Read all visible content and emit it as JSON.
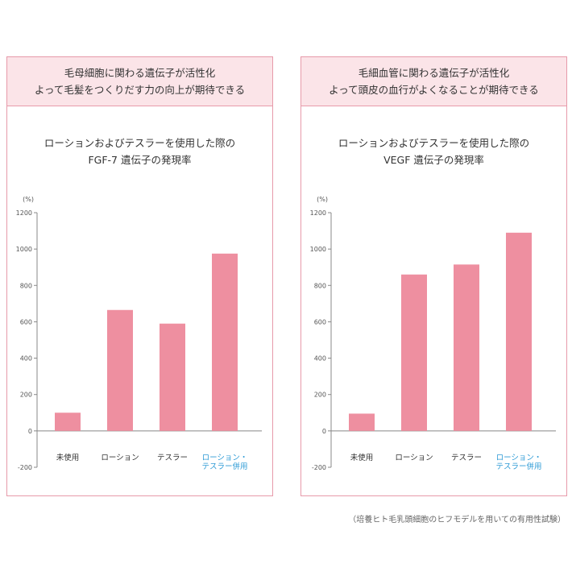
{
  "panels": [
    {
      "header_line1": "毛母細胞に関わる遺伝子が活性化",
      "header_line2": "よって毛髪をつくりだす力の向上が期待できる",
      "title_line1": "ローションおよびテスラーを使用した際の",
      "title_line2": "FGF-7 遺伝子の発現率"
    },
    {
      "header_line1": "毛細血管に関わる遺伝子が活性化",
      "header_line2": "よって頭皮の血行がよくなることが期待できる",
      "title_line1": "ローションおよびテスラーを使用した際の",
      "title_line2": "VEGF 遺伝子の発現率"
    }
  ],
  "chart_data": [
    {
      "type": "bar",
      "title": "ローションおよびテスラーを使用した際の FGF-7 遺伝子の発現率",
      "ylabel": "(%)",
      "ylim": [
        -200,
        1200
      ],
      "yticks": [
        "1200",
        "1000",
        "800",
        "600",
        "400",
        "200",
        "0",
        "-200"
      ],
      "categories": [
        {
          "line1": "未使用",
          "line2": ""
        },
        {
          "line1": "ローション",
          "line2": ""
        },
        {
          "line1": "テスラー",
          "line2": ""
        },
        {
          "line1": "ローション・",
          "line2": "テスラー併用"
        }
      ],
      "values": [
        100,
        665,
        590,
        975
      ],
      "bar_color": "#ee8fa0",
      "highlight_label_color": "#2e9bd6"
    },
    {
      "type": "bar",
      "title": "ローションおよびテスラーを使用した際の VEGF 遺伝子の発現率",
      "ylabel": "(%)",
      "ylim": [
        -200,
        1200
      ],
      "yticks": [
        "1200",
        "1000",
        "800",
        "600",
        "400",
        "200",
        "0",
        "-200"
      ],
      "categories": [
        {
          "line1": "未使用",
          "line2": ""
        },
        {
          "line1": "ローション",
          "line2": ""
        },
        {
          "line1": "テスラー",
          "line2": ""
        },
        {
          "line1": "ローション・",
          "line2": "テスラー併用"
        }
      ],
      "values": [
        95,
        860,
        915,
        1090
      ],
      "bar_color": "#ee8fa0",
      "highlight_label_color": "#2e9bd6"
    }
  ],
  "footnote": "（培養ヒト毛乳頭細胞のヒフモデルを用いての有用性試験）"
}
